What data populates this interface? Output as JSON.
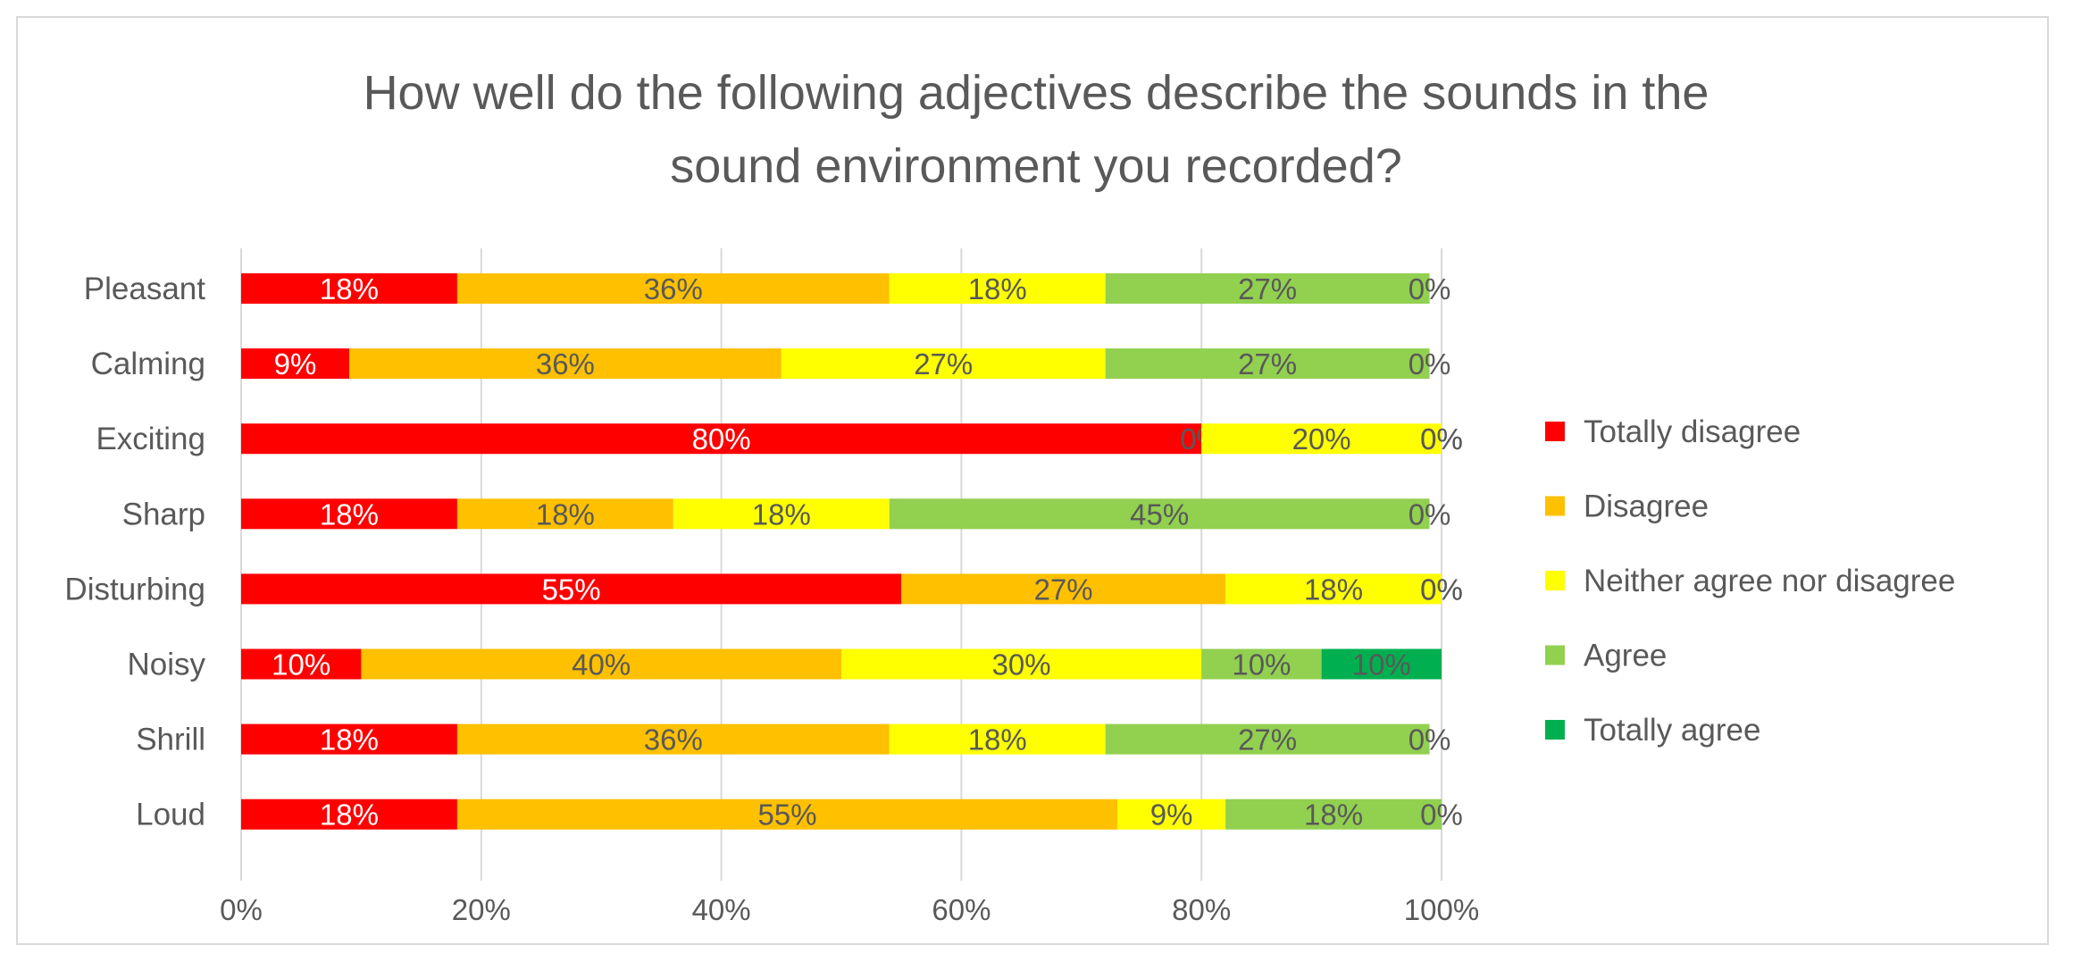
{
  "chart_data": {
    "type": "bar",
    "orientation": "horizontal",
    "stacked": "percent",
    "title_lines": [
      "How well do the following adjectives describe the sounds in the",
      "sound environment  you recorded?"
    ],
    "categories": [
      "Pleasant",
      "Calming",
      "Exciting",
      "Sharp",
      "Disturbing",
      "Noisy",
      "Shrill",
      "Loud"
    ],
    "series": [
      {
        "name": "Totally disagree",
        "color": "#ff0000",
        "label_color": "#ffffff",
        "values": [
          18,
          9,
          80,
          18,
          55,
          10,
          18,
          18
        ],
        "labels": [
          "18%",
          "9%",
          "80%",
          "18%",
          "55%",
          "10%",
          "18%",
          "18%"
        ]
      },
      {
        "name": "Disagree",
        "color": "#ffc000",
        "label_color": "#595959",
        "values": [
          36,
          36,
          0,
          18,
          27,
          40,
          36,
          55
        ],
        "labels": [
          "36%",
          "36%",
          "0%",
          "18%",
          "27%",
          "40%",
          "36%",
          "55%"
        ]
      },
      {
        "name": "Neither agree nor disagree",
        "color": "#ffff00",
        "label_color": "#595959",
        "values": [
          18,
          27,
          20,
          18,
          18,
          30,
          18,
          9
        ],
        "labels": [
          "18%",
          "27%",
          "20%",
          "18%",
          "18%",
          "30%",
          "18%",
          "9%"
        ]
      },
      {
        "name": "Agree",
        "color": "#92d050",
        "label_color": "#595959",
        "values": [
          27,
          27,
          0,
          45,
          0,
          10,
          27,
          18
        ],
        "labels": [
          "27%",
          "27%",
          "0%",
          "45%",
          "0%",
          "10%",
          "27%",
          "18%"
        ]
      },
      {
        "name": "Totally agree",
        "color": "#00b050",
        "label_color": "#595959",
        "values": [
          0,
          0,
          0,
          0,
          0,
          10,
          0,
          0
        ],
        "labels": [
          "0%",
          "0%",
          "0%",
          "0%",
          "0%",
          "10%",
          "0%",
          "0%"
        ]
      }
    ],
    "x_ticks": [
      "0%",
      "20%",
      "40%",
      "60%",
      "80%",
      "100%"
    ],
    "xlim": [
      0,
      100
    ],
    "grid": true,
    "legend_position": "right"
  }
}
